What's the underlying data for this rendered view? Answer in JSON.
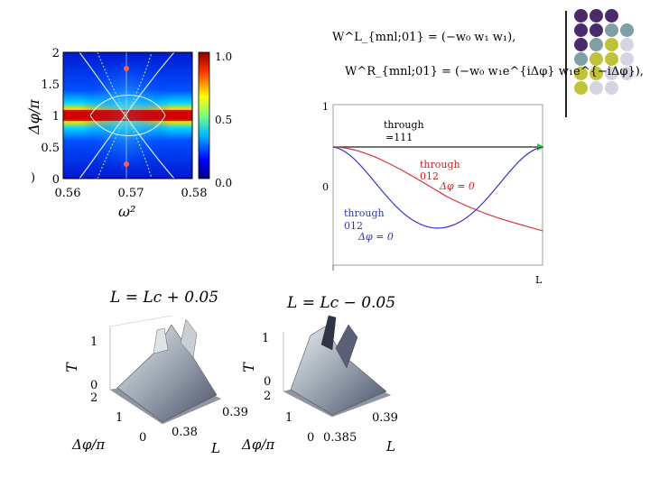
{
  "decor": {
    "dot_colors": [
      "#4b2a6b",
      "#7f9fa4",
      "#c0c23a",
      "#d4d4e2"
    ]
  },
  "heatmap": {
    "y_label": "Δφ/π",
    "x_label": "ω²",
    "y_ticks": [
      "2",
      "1.5",
      "1",
      "0.5",
      "0"
    ],
    "x_ticks": [
      "0.56",
      "0.57",
      "0.58"
    ],
    "colorbar_ticks": [
      "1.0",
      "0.5",
      "0.0"
    ],
    "panel_mark": ")",
    "chart_data": {
      "type": "heatmap",
      "x_range": [
        0.56,
        0.58
      ],
      "y_range": [
        0,
        2
      ],
      "colorbar_range": [
        0.0,
        1.0
      ],
      "xlabel": "ω²",
      "ylabel": "Δφ/π"
    }
  },
  "equations": {
    "eq1": "W^L_{mnl;01} = (−w₀  w₁  w₁),",
    "eq2": "W^R_{mnl;01} = (−w₀  w₁e^{iΔφ}  w₁e^{−iΔφ}),"
  },
  "transmission": {
    "y_ticks": [
      "1",
      "0"
    ],
    "x_end_label": "L",
    "label_black_1": "through",
    "label_black_2": "=111",
    "label_red_1": "through",
    "label_red_2": "012",
    "label_red_3": "Δφ = 0",
    "label_blue_1": "through",
    "label_blue_2": "012",
    "label_blue_3": "Δφ = 0"
  },
  "surface_left": {
    "title": "L = Lc + 0.05",
    "z_label": "T",
    "z_ticks": [
      "1",
      "0"
    ],
    "y_ticks": [
      "2",
      "1",
      "0"
    ],
    "x_ticks": [
      "0.38",
      "0.39"
    ],
    "y_axis_label": "Δφ/π",
    "x_axis_label": "L"
  },
  "surface_right": {
    "title": "L = Lc − 0.05",
    "z_label": "T",
    "z_ticks": [
      "1",
      "0"
    ],
    "y_ticks": [
      "2",
      "1",
      "0"
    ],
    "x_ticks": [
      "0.385",
      "0.39"
    ],
    "y_axis_label": "Δφ/π",
    "x_axis_label": "L"
  }
}
